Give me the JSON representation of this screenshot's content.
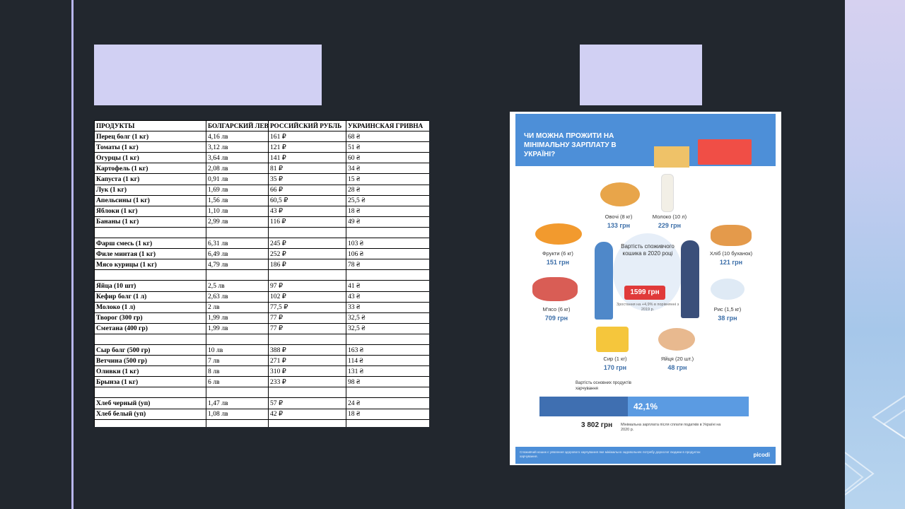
{
  "table": {
    "headers": [
      "ПРОДУКТЫ",
      "БОЛГАРСКИЙ ЛЕВ",
      "РОССИЙСКИЙ РУБЛЬ",
      "УКРАИНСКАЯ ГРИВНА"
    ],
    "rows": [
      [
        "Перец болг (1 кг)",
        "4,16 лв",
        "161 ₽",
        "68 ₴"
      ],
      [
        "Томаты (1 кг)",
        "3,12 лв",
        "121 ₽",
        "51 ₴"
      ],
      [
        "Огурцы (1 кг)",
        "3,64 лв",
        "141 ₽",
        "60 ₴"
      ],
      [
        "Картофель (1 кг)",
        "2,08 лв",
        "81 ₽",
        "34 ₴"
      ],
      [
        "Капуста (1 кг)",
        "0,91 лв",
        "35 ₽",
        "15 ₴"
      ],
      [
        "Лук (1 кг)",
        "1,69 лв",
        "66 ₽",
        "28 ₴"
      ],
      [
        "Апельсины (1 кг)",
        "1,56 лв",
        "60,5 ₽",
        "25,5 ₴"
      ],
      [
        "Яблоки (1 кг)",
        "1,10 лв",
        "43 ₽",
        "18 ₴"
      ],
      [
        "Бананы (1 кг)",
        "2,99 лв",
        "116 ₽",
        "49 ₴"
      ],
      [
        "",
        "",
        "",
        ""
      ],
      [
        "Фарш смесь (1 кг)",
        "6,31 лв",
        "245 ₽",
        "103 ₴"
      ],
      [
        "Филе минтая (1 кг)",
        "6,49 лв",
        "252 ₽",
        "106 ₴"
      ],
      [
        "Мясо курицы (1 кг)",
        "4,79 лв",
        "186 ₽",
        "78 ₴"
      ],
      [
        "",
        "",
        "",
        ""
      ],
      [
        "Яйца (10 шт)",
        "2,5 лв",
        "97 ₽",
        "41 ₴"
      ],
      [
        "Кефир болг (1 л)",
        "2,63 лв",
        "102 ₽",
        "43 ₴"
      ],
      [
        "Молоко (1 л)",
        "2 лв",
        "77,5 ₽",
        "33 ₴"
      ],
      [
        "Творог (300 гр)",
        "1,99 лв",
        "77 ₽",
        "32,5 ₴"
      ],
      [
        "Сметана (400 гр)",
        "1,99 лв",
        "77 ₽",
        "32,5 ₴"
      ],
      [
        "",
        "",
        "",
        ""
      ],
      [
        "Сыр болг (500 гр)",
        "10 лв",
        "388 ₽",
        "163 ₴"
      ],
      [
        "Ветчина (500 гр)",
        "7 лв",
        "271 ₽",
        "114 ₴"
      ],
      [
        "Оливки (1 кг)",
        "8 лв",
        "310 ₽",
        "131 ₴"
      ],
      [
        "Брынза (1 кг)",
        "6 лв",
        "233 ₽",
        "98 ₴"
      ],
      [
        "",
        "",
        "",
        ""
      ],
      [
        "Хлеб черный (уп)",
        "1,47 лв",
        "57 ₽",
        "24 ₴"
      ],
      [
        "Хлеб белый (уп)",
        "1,08 лв",
        "42 ₽",
        "18 ₴"
      ],
      [
        "",
        "",
        "",
        ""
      ],
      [
        "",
        "",
        "",
        ""
      ]
    ]
  },
  "infographic": {
    "title": "ЧИ МОЖНА ПРОЖИТИ НА МІНІМАЛЬНУ ЗАРПЛАТУ В УКРАЇНІ?",
    "center_label": "Вартість споживчого кошика в 2020 році",
    "basket_price": "1599 грн",
    "growth_note": "Зростання на +4,9% в порівнянні з 2019 р.",
    "items": [
      {
        "label": "Овочі (8 кг)",
        "price": "133 грн"
      },
      {
        "label": "Молоко (10 л)",
        "price": "229 грн"
      },
      {
        "label": "Фрукти (6 кг)",
        "price": "151 грн"
      },
      {
        "label": "Хліб (10 буханок)",
        "price": "121 грн"
      },
      {
        "label": "М'ясо (6 кг)",
        "price": "709 грн"
      },
      {
        "label": "Рис (1,5 кг)",
        "price": "38 грн"
      },
      {
        "label": "Сир (1 кг)",
        "price": "170 грн"
      },
      {
        "label": "Яйця (20 шт.)",
        "price": "48 грн"
      }
    ],
    "bar_label": "Вартість основних продуктів харчування",
    "bar_percent_text": "42,1%",
    "bar_fraction": 0.421,
    "salary": "3 802 грн",
    "salary_note": "Мінімальна зарплата після сплати податків в Україні на 2020 р.",
    "footer_note": "Споживчий кошик є уявлення здорового харчування яке мінімально задовольняє потребу дорослої людини в продуктах харчування.",
    "logo": "picodi"
  },
  "colors": {
    "background": "#22272e",
    "placeholder": "#d1d0f3",
    "infographic_blue": "#4d8fd8",
    "bar_dark": "#3f6fb1",
    "basket_red": "#e03a3a"
  }
}
